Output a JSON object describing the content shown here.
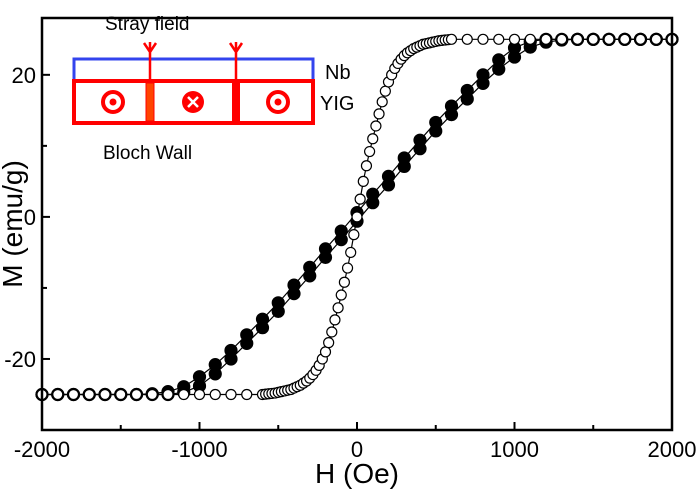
{
  "chart_data": {
    "type": "scatter",
    "xlabel": "H (Oe)",
    "ylabel": "M (emu/g)",
    "xlim": [
      -2000,
      2000
    ],
    "ylim": [
      -30,
      28
    ],
    "xticks": [
      -2000,
      -1000,
      0,
      1000,
      2000
    ],
    "yticks": [
      -20,
      0,
      20
    ],
    "grid": false,
    "series": [
      {
        "marker": "filled-circle",
        "branch": "ascending",
        "x": [
          -2000,
          -1900,
          -1800,
          -1700,
          -1600,
          -1500,
          -1400,
          -1300,
          -1200,
          -1100,
          -1000,
          -900,
          -800,
          -700,
          -600,
          -500,
          -400,
          -300,
          -200,
          -100,
          0,
          100,
          200,
          300,
          400,
          500,
          600,
          700,
          800,
          900,
          1000,
          1100,
          1200,
          1300,
          1400,
          1500,
          1600,
          1700,
          1800,
          1900,
          2000
        ],
        "y": [
          -25,
          -25,
          -25,
          -25,
          -25,
          -25,
          -25,
          -25,
          -25,
          -24.7,
          -23.8,
          -22.1,
          -20.0,
          -17.8,
          -15.6,
          -13.3,
          -10.8,
          -8.3,
          -5.7,
          -3.2,
          -0.6,
          2.0,
          4.5,
          7.1,
          9.6,
          12.1,
          14.4,
          16.6,
          18.8,
          20.8,
          22.5,
          23.9,
          24.6,
          24.9,
          25,
          25,
          25,
          25,
          25,
          25,
          25
        ]
      },
      {
        "marker": "filled-circle",
        "branch": "descending",
        "x": [
          -2000,
          -1900,
          -1800,
          -1700,
          -1600,
          -1500,
          -1400,
          -1300,
          -1200,
          -1100,
          -1000,
          -900,
          -800,
          -700,
          -600,
          -500,
          -400,
          -300,
          -200,
          -100,
          0,
          100,
          200,
          300,
          400,
          500,
          600,
          700,
          800,
          900,
          1000,
          1100,
          1200,
          1300,
          1400,
          1500,
          1600,
          1700,
          1800,
          1900,
          2000
        ],
        "y": [
          -25,
          -25,
          -25,
          -25,
          -25,
          -25,
          -25,
          -24.9,
          -24.6,
          -23.9,
          -22.5,
          -20.8,
          -18.8,
          -16.6,
          -14.4,
          -12.1,
          -9.6,
          -7.1,
          -4.5,
          -2.0,
          0.6,
          3.2,
          5.7,
          8.3,
          10.8,
          13.3,
          15.6,
          17.8,
          20.0,
          22.1,
          23.8,
          24.7,
          25,
          25,
          25,
          25,
          25,
          25,
          25,
          25,
          25
        ]
      },
      {
        "marker": "open-circle",
        "x": [
          -2000,
          -1900,
          -1800,
          -1700,
          -1600,
          -1500,
          -1400,
          -1300,
          -1200,
          -1100,
          -1000,
          -900,
          -800,
          -700,
          -600,
          -580,
          -560,
          -540,
          -520,
          -500,
          -480,
          -460,
          -440,
          -420,
          -400,
          -380,
          -360,
          -340,
          -320,
          -300,
          -280,
          -260,
          -240,
          -220,
          -200,
          -180,
          -160,
          -140,
          -120,
          -100,
          -80,
          -60,
          -40,
          -20,
          0,
          20,
          40,
          60,
          80,
          100,
          120,
          140,
          160,
          180,
          200,
          220,
          240,
          260,
          280,
          300,
          320,
          340,
          360,
          380,
          400,
          420,
          440,
          460,
          480,
          500,
          520,
          540,
          560,
          580,
          600,
          700,
          800,
          900,
          1000,
          1100,
          1200,
          1300,
          1400,
          1500,
          1600,
          1700,
          1800,
          1900,
          2000
        ],
        "y": [
          -25,
          -25,
          -25,
          -25,
          -25,
          -25,
          -25,
          -25,
          -25,
          -25,
          -25,
          -25,
          -25,
          -25,
          -25,
          -24.95,
          -24.9,
          -24.85,
          -24.8,
          -24.7,
          -24.6,
          -24.5,
          -24.4,
          -24.3,
          -24.1,
          -23.9,
          -23.7,
          -23.4,
          -23.1,
          -22.7,
          -22.2,
          -21.6,
          -20.9,
          -20.0,
          -19.0,
          -17.7,
          -16.2,
          -14.5,
          -12.8,
          -11.0,
          -9.2,
          -7.2,
          -5.0,
          -2.5,
          0,
          2.5,
          5.0,
          7.2,
          9.2,
          11.0,
          12.8,
          14.5,
          16.2,
          17.7,
          19.0,
          20.0,
          20.9,
          21.6,
          22.2,
          22.7,
          23.1,
          23.4,
          23.7,
          23.9,
          24.1,
          24.3,
          24.4,
          24.5,
          24.6,
          24.7,
          24.8,
          24.85,
          24.9,
          24.95,
          25,
          25,
          25,
          25,
          25,
          25,
          25,
          25,
          25,
          25,
          25,
          25,
          25,
          25,
          25
        ]
      }
    ],
    "inset": {
      "stray_field_label": "Stray field",
      "nb_label": "Nb",
      "yig_label": "YIG",
      "bloch_wall_label": "Bloch Wall",
      "domains": [
        "out-of-plane-dot",
        "into-plane-cross",
        "out-of-plane-dot"
      ],
      "colors": {
        "nb": "#3344ee",
        "yig": "#ff0000",
        "wall": "#ff4400"
      }
    }
  }
}
